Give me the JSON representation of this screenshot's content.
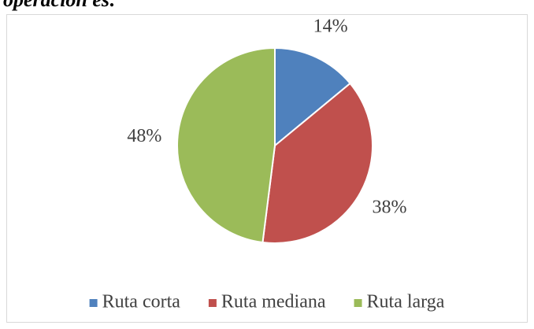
{
  "caption": "operación es:",
  "chart_data": {
    "type": "pie",
    "categories": [
      "Ruta corta",
      "Ruta mediana",
      "Ruta larga"
    ],
    "values": [
      14,
      38,
      48
    ],
    "value_labels": [
      "14%",
      "38%",
      "48%"
    ],
    "colors": [
      "#4f81bd",
      "#c0504d",
      "#9bbb59"
    ],
    "legend": "bottom"
  }
}
